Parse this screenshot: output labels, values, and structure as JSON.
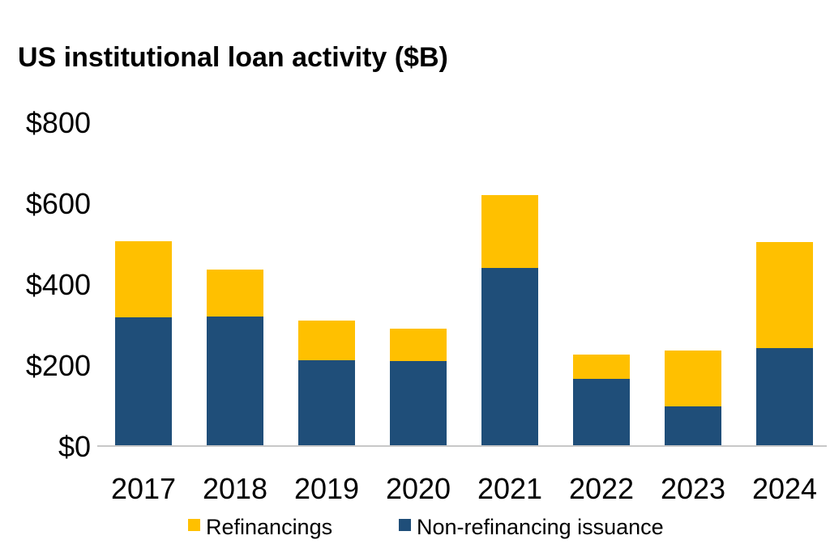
{
  "chart_data": {
    "type": "bar",
    "stacked": true,
    "title": "US institutional loan activity ($B)",
    "xlabel": "",
    "ylabel": "",
    "categories": [
      "2017",
      "2018",
      "2019",
      "2020",
      "2021",
      "2022",
      "2023",
      "2024"
    ],
    "ylim": [
      0,
      800
    ],
    "yticks": [
      0,
      200,
      400,
      600,
      800
    ],
    "ytick_labels": [
      "$0",
      "$200",
      "$400",
      "$600",
      "$800"
    ],
    "grid": false,
    "legend_position": "bottom",
    "series": [
      {
        "name": "Non-refinancing issuance",
        "color": "#1f4e79",
        "values": [
          318,
          320,
          212,
          210,
          440,
          166,
          98,
          242
        ]
      },
      {
        "name": "Refinancings",
        "color": "#ffc000",
        "values": [
          188,
          116,
          98,
          80,
          180,
          60,
          138,
          262
        ]
      }
    ],
    "legend_order": [
      1,
      0
    ]
  }
}
